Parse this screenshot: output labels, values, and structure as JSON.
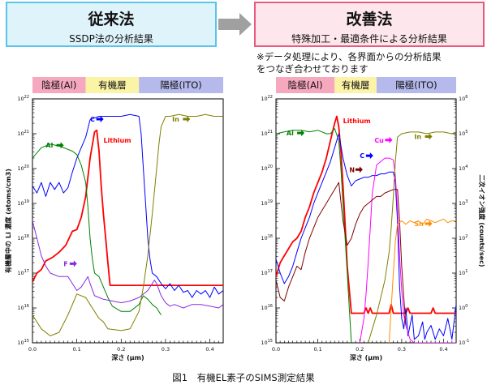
{
  "header": {
    "left_title": "従来法",
    "left_subtitle": "SSDP法の分析結果",
    "right_title": "改善法",
    "right_subtitle": "特殊加工・最適条件による分析結果"
  },
  "note": [
    "※データ処理により、各界面からの分析結果",
    "をつなぎ合わせております"
  ],
  "caption": "図1　有機EL素子のSIMS測定結果",
  "colors": {
    "cathode_band": "#f6a8bf",
    "organic_band": "#fbf4a6",
    "anode_band": "#b6b9ec",
    "Li": "#ff0000",
    "C": "#0000ff",
    "Al": "#008000",
    "In": "#808000",
    "F": "#8a2be2",
    "Cu": "#ff00ff",
    "N": "#800000",
    "Sn": "#ff8c00",
    "inner_blue": "#3355ff",
    "inner_brown": "#6b3a2a"
  },
  "chart_data": [
    {
      "type": "line",
      "title": "SSDP法の分析結果",
      "xlabel": "深さ (μm)",
      "ylabel": "有機層中の Li 濃度 (atoms/cm3)",
      "xlim": [
        0,
        0.43
      ],
      "ylim": [
        15,
        22
      ],
      "yscale": "log10",
      "xticks": [
        "0.0",
        "0.1",
        "0.2",
        "0.3",
        "0.4"
      ],
      "yticks": [
        "15",
        "16",
        "17",
        "18",
        "19",
        "20",
        "21",
        "22"
      ],
      "bands": [
        {
          "label": "陰極(Al)",
          "from": 0,
          "to": 0.12,
          "color_key": "cathode_band"
        },
        {
          "label": "有機層",
          "from": 0.12,
          "to": 0.24,
          "color_key": "organic_band"
        },
        {
          "label": "陽極(ITO)",
          "from": 0.24,
          "to": 0.43,
          "color_key": "anode_band"
        }
      ],
      "series": [
        {
          "name": "Lithium",
          "axis": "left",
          "color_key": "Li",
          "x": [
            0,
            0.01,
            0.02,
            0.03,
            0.045,
            0.06,
            0.075,
            0.09,
            0.1,
            0.11,
            0.12,
            0.13,
            0.14,
            0.145,
            0.15,
            0.155,
            0.16,
            0.165,
            0.17,
            0.175,
            0.43
          ],
          "y": [
            16.75,
            17.0,
            17.1,
            17.35,
            17.45,
            17.6,
            17.8,
            18.2,
            18.25,
            18.6,
            19.2,
            20.3,
            21.05,
            21.1,
            20.5,
            19.5,
            18.7,
            18.0,
            17.3,
            16.65,
            16.65
          ]
        },
        {
          "name": "C",
          "axis": "left",
          "color_key": "C",
          "x": [
            0,
            0.01,
            0.02,
            0.03,
            0.04,
            0.05,
            0.06,
            0.07,
            0.08,
            0.09,
            0.1,
            0.11,
            0.12,
            0.13,
            0.14,
            0.15,
            0.16,
            0.18,
            0.2,
            0.22,
            0.24,
            0.245,
            0.25,
            0.255,
            0.26,
            0.265,
            0.27,
            0.28,
            0.29,
            0.3,
            0.31,
            0.32,
            0.33,
            0.34,
            0.35,
            0.36,
            0.37,
            0.38,
            0.39,
            0.4,
            0.41,
            0.42,
            0.43
          ],
          "y": [
            19.5,
            19.3,
            19.6,
            19.2,
            19.6,
            19.4,
            19.6,
            19.3,
            19.45,
            19.9,
            20.3,
            20.6,
            20.9,
            21.4,
            21.45,
            21.5,
            21.5,
            21.5,
            21.5,
            21.55,
            21.5,
            21.0,
            20.0,
            19.0,
            18.0,
            17.4,
            17.0,
            16.9,
            16.7,
            16.55,
            16.7,
            16.5,
            16.65,
            16.45,
            16.5,
            16.3,
            16.5,
            16.4,
            16.5,
            16.3,
            16.6,
            16.4,
            16.5
          ]
        },
        {
          "name": "Al",
          "axis": "left",
          "color_key": "Al",
          "x": [
            0,
            0.02,
            0.04,
            0.06,
            0.08,
            0.09,
            0.1,
            0.11,
            0.12,
            0.125,
            0.13,
            0.135,
            0.14,
            0.15,
            0.16,
            0.17,
            0.18,
            0.2,
            0.22,
            0.24,
            0.25,
            0.26,
            0.27,
            0.28,
            0.29
          ],
          "y": [
            20.3,
            20.6,
            20.7,
            20.65,
            20.55,
            20.5,
            20.4,
            20.1,
            19.6,
            18.9,
            18.0,
            17.4,
            17.0,
            16.9,
            16.6,
            16.3,
            16.05,
            15.9,
            15.9,
            16.1,
            16.35,
            16.25,
            16.1,
            16.0,
            15.8
          ]
        },
        {
          "name": "F",
          "axis": "left",
          "color_key": "F",
          "x": [
            0,
            0.01,
            0.02,
            0.03,
            0.04,
            0.06,
            0.08,
            0.09,
            0.1,
            0.11,
            0.12,
            0.125,
            0.13,
            0.14,
            0.15,
            0.16,
            0.18,
            0.2,
            0.22,
            0.24,
            0.26,
            0.27,
            0.275,
            0.28,
            0.29,
            0.3,
            0.31,
            0.32,
            0.34,
            0.36,
            0.38,
            0.4,
            0.42,
            0.43
          ],
          "y": [
            18.5,
            18.0,
            17.5,
            17.2,
            17.0,
            16.9,
            16.9,
            16.7,
            16.5,
            16.6,
            16.8,
            16.9,
            16.7,
            16.35,
            16.3,
            16.25,
            16.2,
            16.15,
            16.2,
            16.3,
            16.5,
            16.7,
            16.8,
            16.7,
            16.35,
            16.15,
            16.05,
            16.1,
            16.0,
            16.1,
            16.1,
            16.05,
            16.0,
            16.1
          ]
        },
        {
          "name": "In",
          "axis": "left",
          "color_key": "In",
          "x": [
            0,
            0.02,
            0.04,
            0.06,
            0.08,
            0.1,
            0.12,
            0.13,
            0.14,
            0.15,
            0.16,
            0.17,
            0.2,
            0.22,
            0.24,
            0.25,
            0.26,
            0.27,
            0.28,
            0.285,
            0.29,
            0.3,
            0.31,
            0.33,
            0.35,
            0.37,
            0.39,
            0.41,
            0.43
          ],
          "y": [
            15.8,
            15.4,
            15.2,
            15.3,
            15.8,
            16.4,
            16.3,
            16.1,
            15.9,
            15.7,
            15.6,
            15.4,
            15.35,
            15.4,
            15.9,
            16.6,
            17.5,
            18.7,
            20.0,
            20.7,
            21.2,
            21.5,
            21.5,
            21.55,
            21.5,
            21.5,
            21.55,
            21.5,
            21.5
          ]
        }
      ],
      "labels": [
        {
          "text": "C",
          "arrow": true,
          "color_key": "C",
          "x": 0.13,
          "y": 21.35
        },
        {
          "text": "Al",
          "arrow": true,
          "color_key": "Al",
          "x": 0.03,
          "y": 20.6
        },
        {
          "text": "Lithium",
          "arrow": false,
          "color_key": "Li",
          "x": 0.16,
          "y": 20.75
        },
        {
          "text": "F",
          "arrow": true,
          "color_key": "F",
          "x": 0.07,
          "y": 17.2
        },
        {
          "text": "In",
          "arrow": true,
          "color_key": "In",
          "x": 0.315,
          "y": 21.35
        }
      ]
    },
    {
      "type": "line",
      "title": "特殊加工・最適条件による分析結果",
      "xlabel": "深さ (μm)",
      "ylabel": "二次イオン強度 (counts/sec)",
      "xlim": [
        0,
        0.43
      ],
      "ylim": [
        15,
        22
      ],
      "yscale": "log10",
      "xticks": [
        "0.0",
        "0.1",
        "0.2",
        "0.3",
        "0.4"
      ],
      "yticks": [
        "15",
        "16",
        "17",
        "18",
        "19",
        "20",
        "21",
        "22"
      ],
      "ylim_right": [
        -1,
        6
      ],
      "yticks_right": [
        "10^-1",
        "10^0",
        "10^1",
        "10^2",
        "10^3",
        "10^4",
        "10^5",
        "10^6"
      ],
      "bands": [
        {
          "label": "陰極(Al)",
          "from": 0,
          "to": 0.14,
          "color_key": "cathode_band"
        },
        {
          "label": "有機層",
          "from": 0.14,
          "to": 0.24,
          "color_key": "organic_band"
        },
        {
          "label": "陽極(ITO)",
          "from": 0.24,
          "to": 0.43,
          "color_key": "anode_band"
        }
      ],
      "series": [
        {
          "name": "Lithium",
          "axis": "left",
          "color_key": "Li",
          "x": [
            0,
            0.01,
            0.02,
            0.03,
            0.04,
            0.05,
            0.06,
            0.07,
            0.08,
            0.09,
            0.1,
            0.11,
            0.12,
            0.13,
            0.14,
            0.145,
            0.15,
            0.155,
            0.16,
            0.165,
            0.17,
            0.18,
            0.2,
            0.21,
            0.215,
            0.22,
            0.225,
            0.23,
            0.26,
            0.27,
            0.275,
            0.28,
            0.3,
            0.31,
            0.315,
            0.32,
            0.33,
            0.36,
            0.37,
            0.375,
            0.38,
            0.43
          ],
          "y": [
            16.9,
            17.3,
            17.5,
            17.7,
            17.9,
            18.0,
            18.2,
            18.6,
            18.9,
            19.3,
            19.6,
            19.9,
            20.3,
            20.8,
            21.3,
            21.5,
            21.2,
            20.5,
            19.5,
            18.4,
            17.2,
            15.85,
            15.85,
            15.85,
            16.0,
            15.85,
            16.0,
            15.85,
            15.85,
            15.85,
            16.1,
            15.85,
            15.85,
            15.85,
            16.0,
            15.85,
            15.85,
            15.85,
            15.85,
            16.0,
            15.85,
            15.85
          ]
        },
        {
          "name": "Al",
          "axis": "left",
          "color_key": "Al",
          "x": [
            0,
            0.02,
            0.04,
            0.06,
            0.08,
            0.1,
            0.11,
            0.12,
            0.13,
            0.14,
            0.15,
            0.155,
            0.16,
            0.165,
            0.17,
            0.175,
            0.18
          ],
          "y": [
            21.0,
            21.05,
            21.1,
            21.1,
            21.05,
            21.1,
            21.05,
            21.0,
            21.0,
            21.15,
            20.8,
            20.0,
            19.0,
            18.0,
            17.0,
            16.0,
            15.0
          ]
        },
        {
          "name": "C",
          "axis": "right",
          "color_key": "C",
          "x": [
            0,
            0.01,
            0.02,
            0.03,
            0.04,
            0.05,
            0.06,
            0.07,
            0.08,
            0.09,
            0.1,
            0.11,
            0.12,
            0.13,
            0.14,
            0.15,
            0.16,
            0.17,
            0.18,
            0.19,
            0.2,
            0.21,
            0.22,
            0.23,
            0.24,
            0.25,
            0.26,
            0.27,
            0.28,
            0.285,
            0.29,
            0.295,
            0.3,
            0.305,
            0.31,
            0.315,
            0.32,
            0.325,
            0.33,
            0.34,
            0.35,
            0.355,
            0.36,
            0.37,
            0.38,
            0.39,
            0.4,
            0.41,
            0.42,
            0.43
          ],
          "y": [
            1.4,
            1.0,
            0.7,
            0.9,
            1.2,
            1.6,
            2.0,
            2.3,
            2.6,
            3.0,
            3.3,
            3.6,
            3.9,
            4.2,
            4.6,
            5.0,
            4.3,
            3.8,
            3.5,
            3.65,
            3.7,
            3.75,
            3.75,
            3.8,
            3.8,
            3.85,
            3.85,
            3.9,
            3.9,
            3.6,
            2.5,
            0.6,
            -0.3,
            -0.6,
            0.0,
            -0.8,
            -0.5,
            -0.2,
            -0.9,
            -0.8,
            -0.4,
            -0.9,
            -0.7,
            -0.5,
            -0.9,
            -0.6,
            -0.8,
            -0.3,
            -0.9,
            0.1
          ]
        },
        {
          "name": "Cu",
          "axis": "right",
          "color_key": "Cu",
          "x": [
            0.2,
            0.21,
            0.215,
            0.22,
            0.225,
            0.23,
            0.24,
            0.25,
            0.26,
            0.27,
            0.28,
            0.285,
            0.29,
            0.295,
            0.3,
            0.305,
            0.31,
            0.315,
            0.32,
            0.33,
            0.34,
            0.35,
            0.36,
            0.37,
            0.38,
            0.39,
            0.4,
            0.41,
            0.42,
            0.43
          ],
          "y": [
            -1.0,
            -0.3,
            0.4,
            1.3,
            2.3,
            3.3,
            4.1,
            4.2,
            4.3,
            4.3,
            4.25,
            3.8,
            2.8,
            1.5,
            0.5,
            -0.2,
            -0.5,
            -0.7,
            -0.9,
            -1.0,
            -1.0,
            -1.0,
            -1.0,
            -1.0,
            -1.0,
            -1.0,
            -1.0,
            -1.0,
            -1.0,
            -1.0
          ]
        },
        {
          "name": "N",
          "axis": "right",
          "color_key": "N",
          "x": [
            0,
            0.01,
            0.02,
            0.03,
            0.04,
            0.05,
            0.06,
            0.07,
            0.08,
            0.09,
            0.1,
            0.11,
            0.12,
            0.13,
            0.14,
            0.15,
            0.16,
            0.17,
            0.18,
            0.19,
            0.2,
            0.21,
            0.22,
            0.23,
            0.24,
            0.25,
            0.26,
            0.27,
            0.28,
            0.29,
            0.295,
            0.3,
            0.305,
            0.31
          ],
          "y": [
            0.8,
            0.3,
            0.2,
            0.6,
            0.9,
            1.2,
            1.1,
            1.6,
            2.0,
            2.3,
            2.6,
            2.8,
            3.0,
            3.2,
            3.4,
            3.6,
            2.5,
            1.8,
            2.0,
            2.4,
            2.7,
            2.9,
            3.0,
            3.1,
            3.2,
            3.2,
            3.3,
            3.35,
            3.4,
            3.4,
            2.5,
            1.2,
            0.3,
            -0.5
          ]
        },
        {
          "name": "In",
          "axis": "right",
          "color_key": "In",
          "x": [
            0.22,
            0.23,
            0.24,
            0.25,
            0.26,
            0.27,
            0.275,
            0.28,
            0.285,
            0.29,
            0.3,
            0.32,
            0.34,
            0.36,
            0.38,
            0.4,
            0.42,
            0.43
          ],
          "y": [
            -1.0,
            -0.6,
            -0.2,
            0.3,
            0.8,
            1.6,
            2.3,
            3.2,
            4.2,
            4.9,
            5.0,
            5.05,
            5.05,
            5.0,
            5.05,
            5.05,
            5.0,
            5.05
          ]
        },
        {
          "name": "Sn",
          "axis": "right",
          "color_key": "Sn",
          "x": [
            0.27,
            0.275,
            0.28,
            0.285,
            0.29,
            0.3,
            0.31,
            0.32,
            0.33,
            0.34,
            0.35,
            0.36,
            0.37,
            0.38,
            0.39,
            0.4,
            0.41,
            0.42,
            0.43
          ],
          "y": [
            -1.0,
            0.0,
            1.0,
            1.9,
            2.4,
            2.5,
            2.4,
            2.5,
            2.45,
            2.5,
            2.4,
            2.55,
            2.5,
            2.45,
            2.5,
            2.55,
            2.45,
            2.5,
            2.5
          ]
        }
      ],
      "labels": [
        {
          "text": "Al",
          "arrow": true,
          "color_key": "Al",
          "x": 0.025,
          "y": 20.95
        },
        {
          "text": "Lithium",
          "arrow": false,
          "color_key": "Li",
          "x": 0.16,
          "y": 21.3
        },
        {
          "text": "Cu",
          "arrow": true,
          "color_key": "Cu",
          "x": 0.235,
          "y": 20.75
        },
        {
          "text": "C",
          "arrow": true,
          "color_key": "C",
          "x": 0.2,
          "y": 20.3
        },
        {
          "text": "N",
          "arrow": true,
          "color_key": "N",
          "x": 0.175,
          "y": 19.9
        },
        {
          "text": "In",
          "arrow": true,
          "color_key": "In",
          "x": 0.33,
          "y": 20.85
        },
        {
          "text": "Sn",
          "arrow": true,
          "color_key": "Sn",
          "x": 0.33,
          "y": 18.35
        }
      ]
    }
  ]
}
